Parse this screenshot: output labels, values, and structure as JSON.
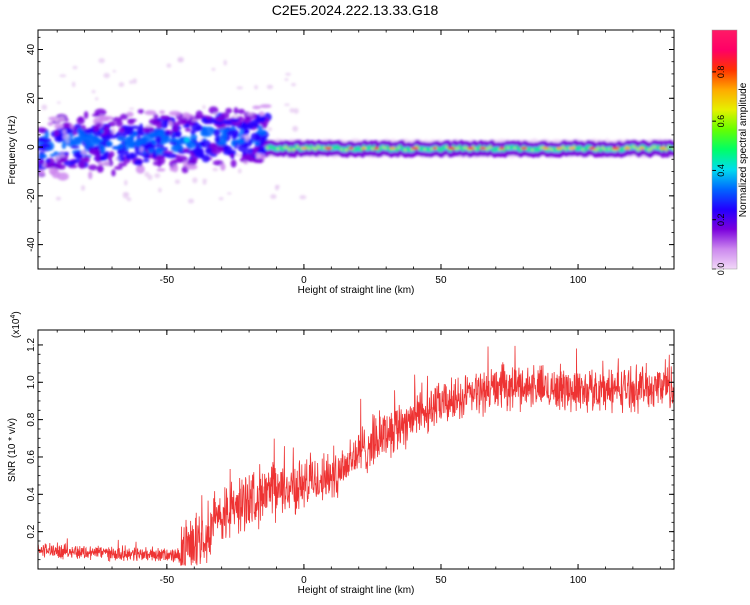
{
  "title": "C2E5.2024.222.13.33.G18",
  "chart_data": [
    {
      "type": "heatmap",
      "xlabel": "Height of straight line (km)",
      "ylabel": "Frequency (Hz)",
      "xlim": [
        -97,
        135
      ],
      "ylim": [
        -50,
        48
      ],
      "xticks": [
        -50,
        0,
        50,
        100
      ],
      "yticks": [
        -40,
        -20,
        0,
        20,
        40
      ],
      "ytick_labels": [
        "-40",
        "-20",
        "0",
        "20",
        "40"
      ],
      "xtick_labels": [
        "-50",
        "0",
        "50",
        "100"
      ],
      "grid": false,
      "colorbar": {
        "label": "Normalized spectral amplitude",
        "range": [
          0.0,
          0.97
        ],
        "ticks": [
          0.0,
          0.2,
          0.4,
          0.6,
          0.8
        ],
        "tick_labels": [
          "0.0",
          "0.2",
          "0.4",
          "0.6",
          "0.8"
        ],
        "colors": [
          "#f2d8f8",
          "#cc88ee",
          "#7a00dd",
          "#2200ff",
          "#0066ff",
          "#00ddee",
          "#00ff66",
          "#66ff00",
          "#e6f000",
          "#ffaa00",
          "#ff3300",
          "#ff0066",
          "#ff1a66"
        ]
      },
      "segments": [
        {
          "x_range": [
            -97,
            -13
          ],
          "freq_center": "0 to 5",
          "freq_spread": "-15 to 12",
          "description": "scattered broad energy, rising trend"
        },
        {
          "x_range": [
            -13,
            135
          ],
          "freq_center": 0,
          "freq_spread": "-4 to 3",
          "description": "narrow stable band near 0 Hz with high-amplitude cores"
        }
      ]
    },
    {
      "type": "line",
      "xlabel": "Height of straight line (km)",
      "ylabel": "SNR (10 * v/v)",
      "y_multiplier_label": "(x10",
      "y_multiplier_exp": "4",
      "xlim": [
        -97,
        135
      ],
      "ylim": [
        0.0,
        1.28
      ],
      "xticks": [
        -50,
        0,
        50,
        100
      ],
      "xtick_labels": [
        "-50",
        "0",
        "50",
        "100"
      ],
      "yticks": [
        0.2,
        0.4,
        0.6,
        0.8,
        1.0,
        1.2
      ],
      "ytick_labels": [
        "0.2",
        "0.4",
        "0.6",
        "0.8",
        "1.0",
        "1.2"
      ],
      "color": "#ee3333",
      "trend": {
        "x": [
          -97,
          -80,
          -60,
          -45,
          -40,
          -30,
          -20,
          -10,
          0,
          10,
          20,
          30,
          40,
          50,
          60,
          70,
          80,
          90,
          100,
          110,
          120,
          135
        ],
        "y": [
          0.1,
          0.09,
          0.08,
          0.07,
          0.15,
          0.28,
          0.38,
          0.42,
          0.45,
          0.5,
          0.62,
          0.73,
          0.82,
          0.88,
          0.93,
          0.97,
          0.98,
          0.97,
          0.96,
          0.96,
          0.97,
          0.98
        ]
      }
    }
  ]
}
